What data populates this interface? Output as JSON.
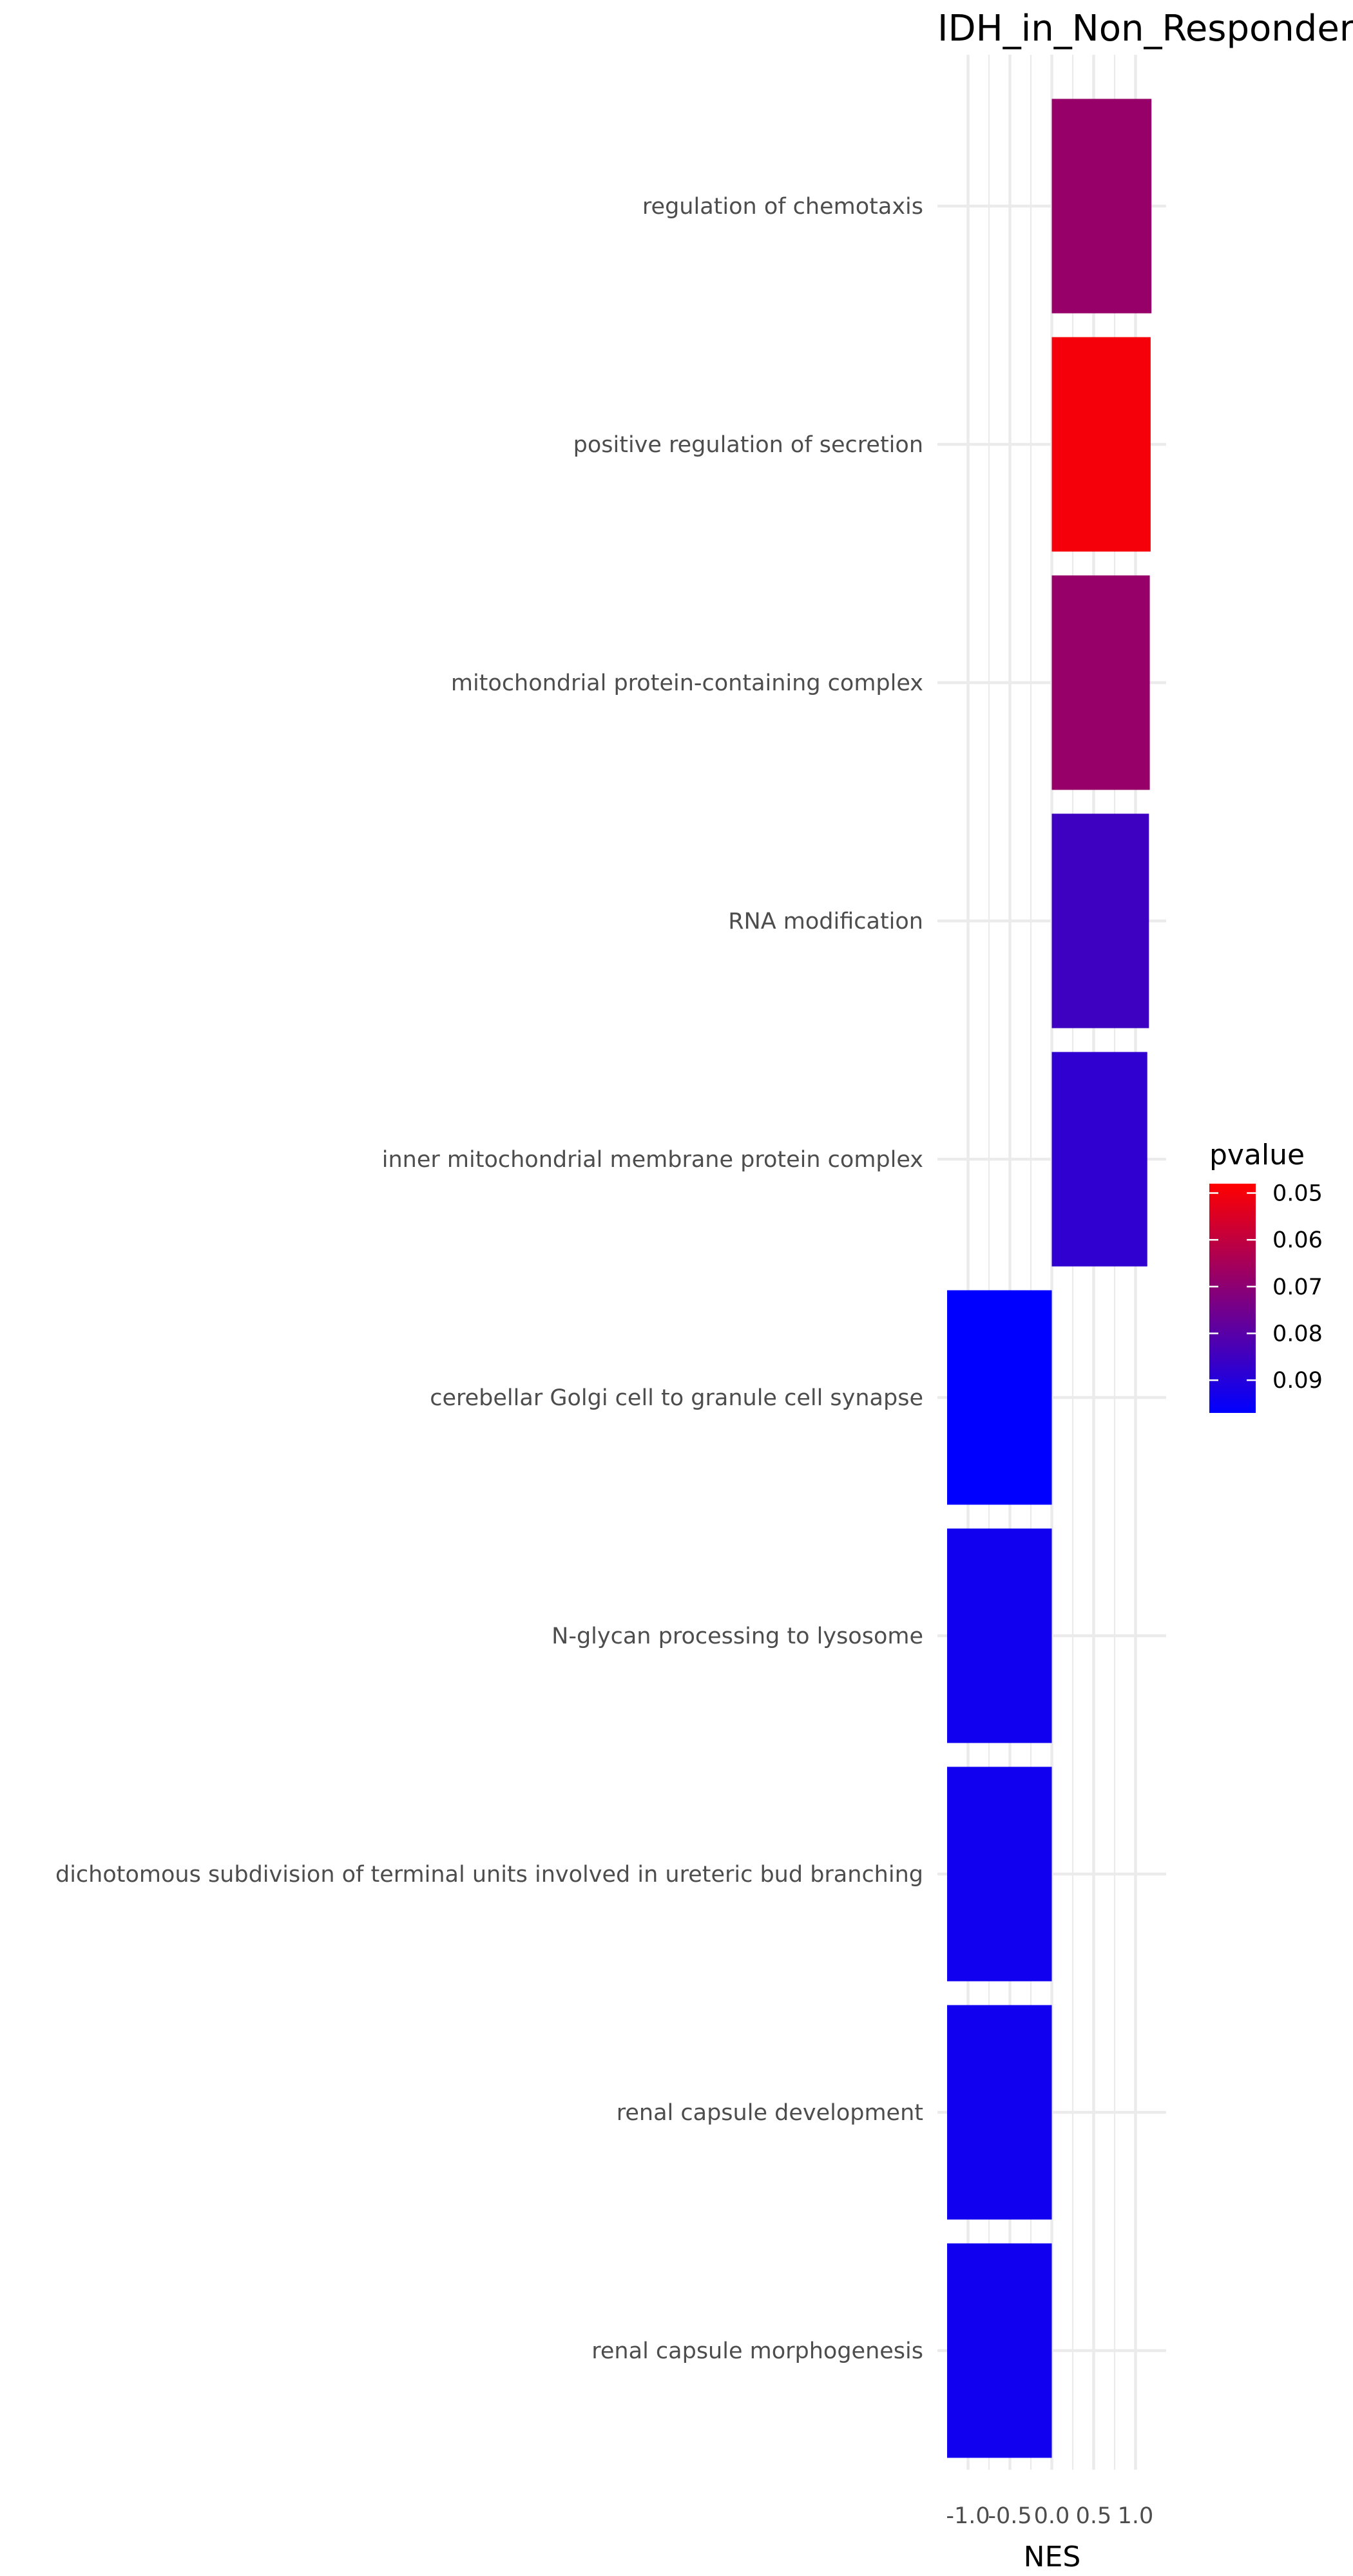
{
  "chart_data": {
    "type": "bar",
    "orientation": "horizontal",
    "title": "IDH_in_Non_Responders",
    "xlabel": "NES",
    "ylabel": "",
    "xlim": [
      -1.25,
      1.25
    ],
    "x_ticks": [
      -1.0,
      -0.5,
      0.0,
      0.5,
      1.0
    ],
    "x_tick_labels": [
      "-1.0",
      "-0.5",
      "0.0",
      "0.5",
      "1.0"
    ],
    "grid": true,
    "categories": [
      "regulation of chemotaxis",
      "positive regulation of secretion",
      "mitochondrial protein-containing complex",
      "RNA modification",
      "inner mitochondrial membrane protein complex",
      "cerebellar Golgi cell to granule cell synapse",
      "N-glycan processing to lysosome",
      "dichotomous subdivision of terminal units involved in ureteric bud branching",
      "renal capsule development",
      "renal capsule morphogenesis"
    ],
    "values": [
      1.19,
      1.18,
      1.17,
      1.16,
      1.14,
      -1.25,
      -1.25,
      -1.25,
      -1.25,
      -1.25
    ],
    "pvalues": [
      0.068,
      0.05,
      0.068,
      0.085,
      0.088,
      0.097,
      0.094,
      0.094,
      0.094,
      0.094
    ],
    "legend": {
      "title": "pvalue",
      "placement": "right",
      "range": [
        0.048,
        0.097
      ],
      "ticks": [
        0.05,
        0.06,
        0.07,
        0.08,
        0.09
      ],
      "tick_labels": [
        "0.05",
        "0.06",
        "0.07",
        "0.08",
        "0.09"
      ],
      "color_low_pvalue": "#ff0000",
      "color_high_pvalue": "#0000ff"
    }
  }
}
